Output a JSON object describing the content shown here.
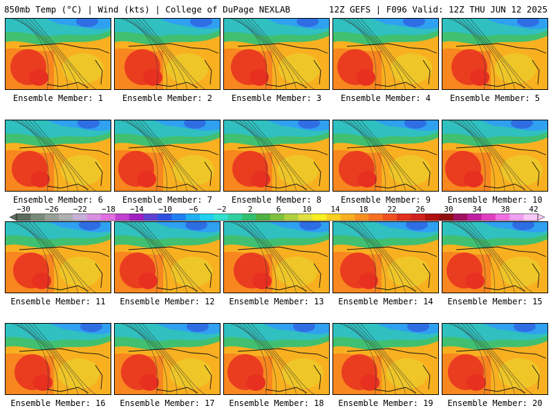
{
  "header": {
    "left_title": "850mb Temp (°C) | Wind (kts) | College of DuPage NEXLAB",
    "right_title": "12Z GEFS | F096 Valid: 12Z THU JUN 12 2025"
  },
  "panels": [
    {
      "label": "Ensemble Member: 1"
    },
    {
      "label": "Ensemble Member: 2"
    },
    {
      "label": "Ensemble Member: 3"
    },
    {
      "label": "Ensemble Member: 4"
    },
    {
      "label": "Ensemble Member: 5"
    },
    {
      "label": "Ensemble Member: 6"
    },
    {
      "label": "Ensemble Member: 7"
    },
    {
      "label": "Ensemble Member: 8"
    },
    {
      "label": "Ensemble Member: 9"
    },
    {
      "label": "Ensemble Member: 10"
    },
    {
      "label": "Ensemble Member: 11"
    },
    {
      "label": "Ensemble Member: 12"
    },
    {
      "label": "Ensemble Member: 13"
    },
    {
      "label": "Ensemble Member: 14"
    },
    {
      "label": "Ensemble Member: 15"
    },
    {
      "label": "Ensemble Member: 16"
    },
    {
      "label": "Ensemble Member: 17"
    },
    {
      "label": "Ensemble Member: 18"
    },
    {
      "label": "Ensemble Member: 19"
    },
    {
      "label": "Ensemble Member: 20"
    }
  ],
  "colorbar": {
    "tick_labels": [
      "−30",
      "−26",
      "−22",
      "−18",
      "−14",
      "−10",
      "−6",
      "−2",
      "2",
      "6",
      "10",
      "14",
      "18",
      "22",
      "26",
      "30",
      "34",
      "38",
      "42"
    ],
    "colors": [
      "#5c6b5c",
      "#7a8a7a",
      "#98a098",
      "#b0b0b0",
      "#c8b0d8",
      "#d890e0",
      "#e070e0",
      "#c040d0",
      "#a020c0",
      "#6040d0",
      "#3050e0",
      "#2080f0",
      "#20b0f0",
      "#20d0f0",
      "#30e0d0",
      "#30d0a0",
      "#30c070",
      "#50b040",
      "#80c040",
      "#b0d040",
      "#e0e040",
      "#f8f020",
      "#f8d020",
      "#f8b020",
      "#f89020",
      "#f87020",
      "#f05020",
      "#e03020",
      "#d02020",
      "#b01010",
      "#901010",
      "#a01060",
      "#c020a0",
      "#e040c0",
      "#f070e0",
      "#f0a0f0",
      "#f8c8f8"
    ]
  },
  "palette": {
    "hot": "#e83020",
    "warm": "#f88020",
    "mild": "#f8b020",
    "cool": "#e8d830",
    "green": "#40c070",
    "teal": "#30c0c0",
    "cold": "#30a0f0",
    "frigid": "#3060e0"
  }
}
